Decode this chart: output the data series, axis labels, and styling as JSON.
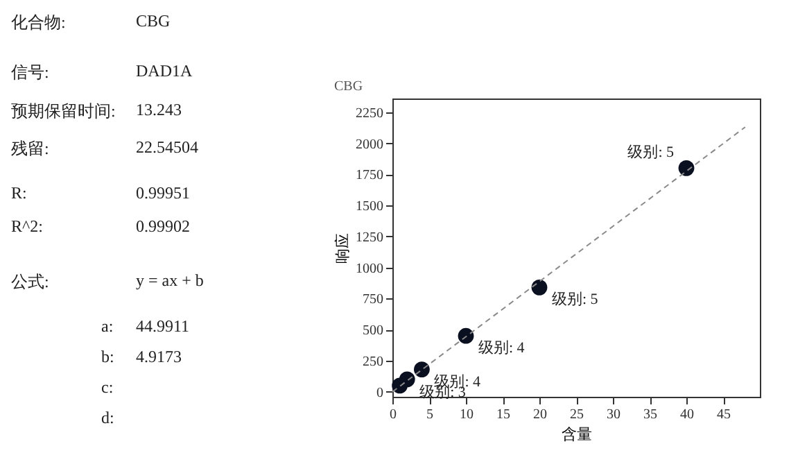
{
  "chart_data": [
    {
      "type": "other",
      "annotations": [
        "化合物:",
        "CBG",
        "信号:",
        "DAD1A",
        "预期保留时间:",
        "13.243",
        "残留:",
        "22.54504",
        "R:",
        "0.99951",
        "R^2:",
        "0.99902",
        "公式:",
        "y = ax + b",
        "a:",
        "44.9911",
        "b:",
        "4.9173",
        "c:",
        "d:"
      ]
    },
    {
      "type": "scatter",
      "title": "CBG",
      "xlabel": "含量",
      "ylabel": "响应",
      "marker": "circle",
      "xlim": [
        0,
        50
      ],
      "xticks": [
        0,
        5,
        10,
        15,
        20,
        25,
        30,
        35,
        40,
        45
      ],
      "ylim": [
        -40,
        2360
      ],
      "yticks": [
        0,
        250,
        500,
        750,
        1000,
        1250,
        1500,
        1750,
        2000,
        2250
      ],
      "series": [
        {
          "type": "scatter",
          "color": "#0a1020",
          "x": [
            1,
            2,
            4,
            10,
            20,
            40
          ],
          "values": [
            50,
            100,
            180,
            450,
            840,
            1800
          ]
        },
        {
          "type": "line",
          "color": "#8a8a8a",
          "line_style": "dashed",
          "marker": "none",
          "x": [
            0,
            48
          ],
          "values": [
            0,
            2130
          ]
        }
      ],
      "annotations": [
        {
          "text": "级别: 3",
          "x": 2,
          "y": 95
        },
        {
          "text": "级别: 4",
          "x": 4,
          "y": 180
        },
        {
          "text": "级别: 4",
          "x": 10,
          "y": 450
        },
        {
          "text": "级别: 5",
          "x": 20,
          "y": 840
        },
        {
          "text": "级别: 5",
          "x": 40,
          "y": 1800
        }
      ]
    }
  ]
}
